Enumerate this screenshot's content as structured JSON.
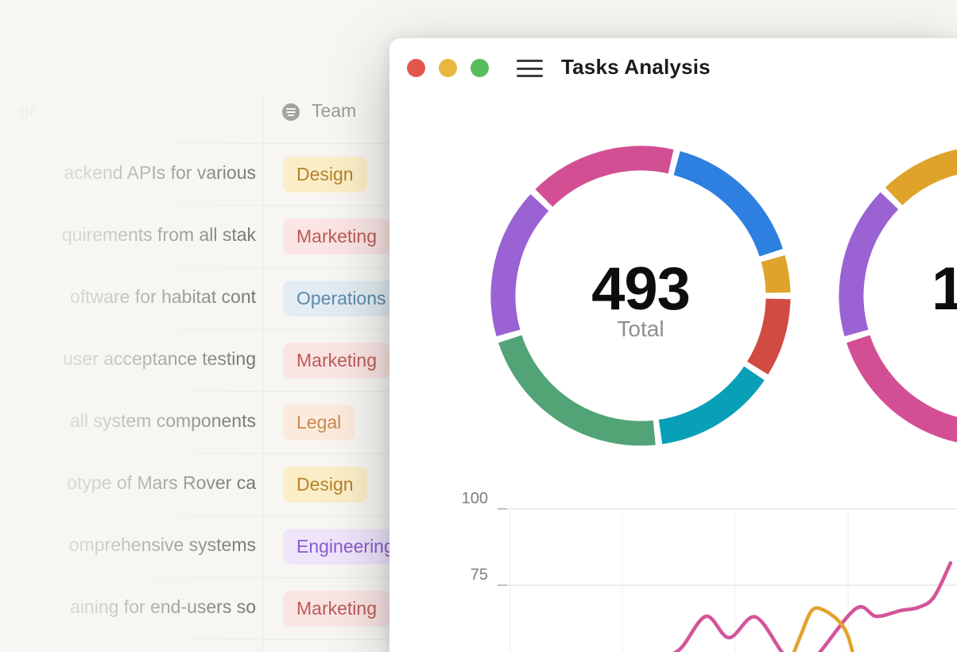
{
  "window": {
    "title": "Tasks Analysis",
    "traffic_lights": [
      {
        "name": "close",
        "color": "#e3564e"
      },
      {
        "name": "minimize",
        "color": "#e9b73d"
      },
      {
        "name": "zoom",
        "color": "#58bd5c"
      }
    ]
  },
  "table": {
    "header_fragment": "or",
    "team_header": "Team",
    "rows": [
      {
        "task_fragment": "ackend APIs for various",
        "team": "Design"
      },
      {
        "task_fragment": "quirements from all stak",
        "team": "Marketing"
      },
      {
        "task_fragment": "oftware for habitat cont",
        "team": "Operations"
      },
      {
        "task_fragment": "user acceptance testing",
        "team": "Marketing"
      },
      {
        "task_fragment": "all system components",
        "team": "Legal"
      },
      {
        "task_fragment": "otype of Mars Rover ca",
        "team": "Design"
      },
      {
        "task_fragment": "omprehensive systems",
        "team": "Engineering"
      },
      {
        "task_fragment": "aining for end-users so",
        "team": "Marketing"
      }
    ],
    "tag_colors": {
      "Design": {
        "bg": "#fbeec7",
        "text": "#b5822f"
      },
      "Marketing": {
        "bg": "#fae4e4",
        "text": "#bd5a55"
      },
      "Operations": {
        "bg": "#e3ecf2",
        "text": "#5b8bab"
      },
      "Legal": {
        "bg": "#fcebdd",
        "text": "#c98a4f"
      },
      "Engineering": {
        "bg": "#eee5fa",
        "text": "#8a5ad1"
      }
    }
  },
  "chart_data": [
    {
      "type": "pie",
      "style": "donut",
      "center_value": "493",
      "center_label": "Total",
      "segments": [
        {
          "color": "#d34f93",
          "start_deg": 314,
          "end_deg": 374,
          "value": 82
        },
        {
          "color": "#2d7fe0",
          "start_deg": 14,
          "end_deg": 73,
          "value": 81
        },
        {
          "color": "#dfa32b",
          "start_deg": 73,
          "end_deg": 90,
          "value": 23
        },
        {
          "color": "#d14b42",
          "start_deg": 90,
          "end_deg": 123,
          "value": 45
        },
        {
          "color": "#099fb7",
          "start_deg": 123,
          "end_deg": 173,
          "value": 68
        },
        {
          "color": "#52a477",
          "start_deg": 173,
          "end_deg": 253,
          "value": 110
        },
        {
          "color": "#9a62d2",
          "start_deg": 253,
          "end_deg": 314,
          "value": 84
        }
      ]
    },
    {
      "type": "pie",
      "style": "donut",
      "note": "partially visible at right edge",
      "center_value_visible": "1",
      "segments": [
        {
          "color": "#d34f93",
          "start_deg": 160,
          "end_deg": 253
        },
        {
          "color": "#9a62d2",
          "start_deg": 253,
          "end_deg": 315
        },
        {
          "color": "#dfa32b",
          "start_deg": 315,
          "end_deg": 405
        }
      ]
    },
    {
      "type": "line",
      "title": "",
      "ytick_labels": [
        "100",
        "75"
      ],
      "yticks": [
        100,
        75
      ],
      "ylim": [
        45,
        105
      ],
      "grid": true,
      "series": [
        {
          "name": "series-pink",
          "color": "#d4549a",
          "points": [
            [
              34,
              50
            ],
            [
              40,
              53.9
            ],
            [
              45.7,
              64.8
            ],
            [
              50.7,
              57.8
            ],
            [
              56.4,
              64.6
            ],
            [
              62.4,
              52.6
            ],
            [
              66.3,
              47.4
            ],
            [
              70.1,
              52.6
            ],
            [
              78.2,
              67.4
            ],
            [
              82.6,
              64.8
            ],
            [
              87.8,
              66.7
            ],
            [
              91.6,
              67.7
            ],
            [
              95,
              71.1
            ],
            [
              98.6,
              82.3
            ]
          ]
        },
        {
          "name": "series-amber",
          "color": "#e2a32c",
          "points": [
            [
              64.1,
              50.5
            ],
            [
              66.3,
              58.9
            ],
            [
              68.6,
              66.7
            ],
            [
              71.1,
              66.9
            ],
            [
              74.6,
              63
            ],
            [
              76.5,
              58.1
            ],
            [
              77.8,
              50.5
            ]
          ]
        }
      ]
    }
  ]
}
